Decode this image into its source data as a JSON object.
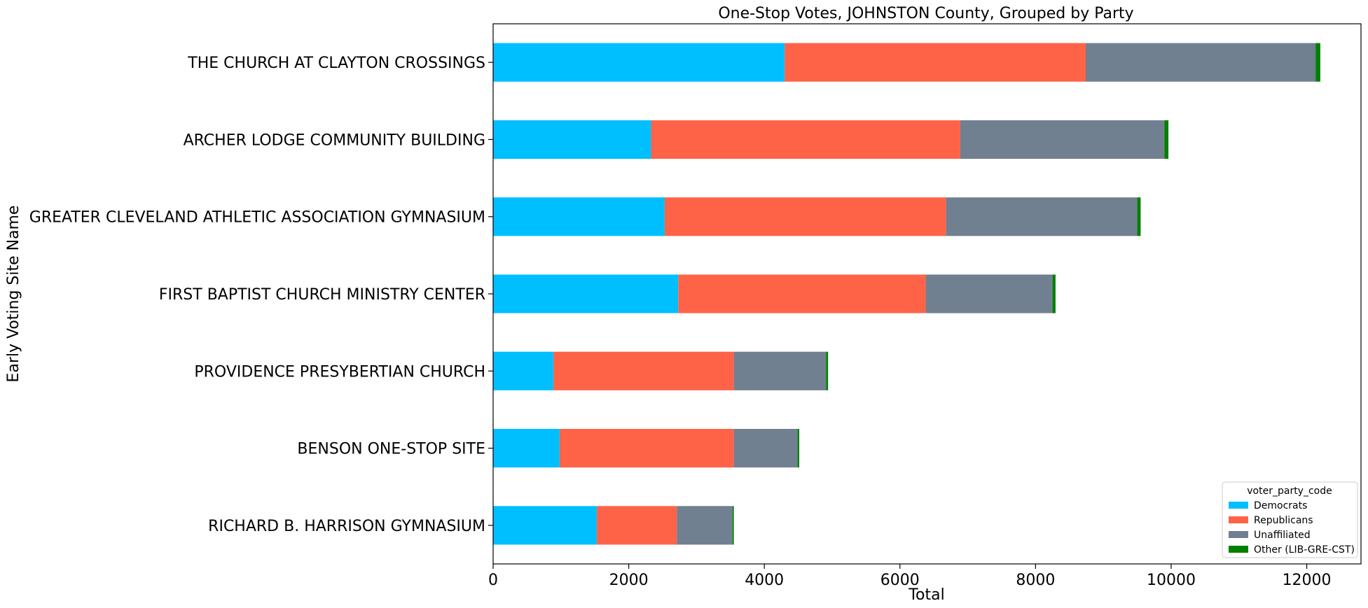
{
  "chart_data": {
    "type": "bar",
    "orientation": "horizontal",
    "stacked": true,
    "title": "One-Stop Votes, JOHNSTON County, Grouped by Party",
    "xlabel": "Total",
    "ylabel": "Early Voting Site Name",
    "xlim": [
      0,
      12800
    ],
    "xticks": [
      0,
      2000,
      4000,
      6000,
      8000,
      10000,
      12000
    ],
    "grid": false,
    "legend_position": "lower-right",
    "legend_title": "voter_party_code",
    "categories": [
      "THE CHURCH AT CLAYTON CROSSINGS",
      "ARCHER LODGE COMMUNITY BUILDING",
      "GREATER CLEVELAND ATHLETIC ASSOCIATION GYMNASIUM",
      "FIRST BAPTIST CHURCH MINISTRY CENTER",
      "PROVIDENCE PRESYBERTIAN CHURCH",
      "BENSON ONE-STOP SITE",
      "RICHARD B. HARRISON GYMNASIUM"
    ],
    "series": [
      {
        "name": "Democrats",
        "color": "#00BFFF",
        "values": [
          4300,
          2330,
          2530,
          2730,
          890,
          980,
          1530
        ]
      },
      {
        "name": "Republicans",
        "color": "#FF6347",
        "values": [
          4440,
          4560,
          4150,
          3650,
          2660,
          2570,
          1180
        ]
      },
      {
        "name": "Unaffiliated",
        "color": "#708090",
        "values": [
          3390,
          3010,
          2820,
          1870,
          1360,
          940,
          820
        ]
      },
      {
        "name": "Other (LIB-GRE-CST)",
        "color": "#008000",
        "values": [
          70,
          60,
          50,
          45,
          30,
          25,
          20
        ]
      }
    ]
  }
}
